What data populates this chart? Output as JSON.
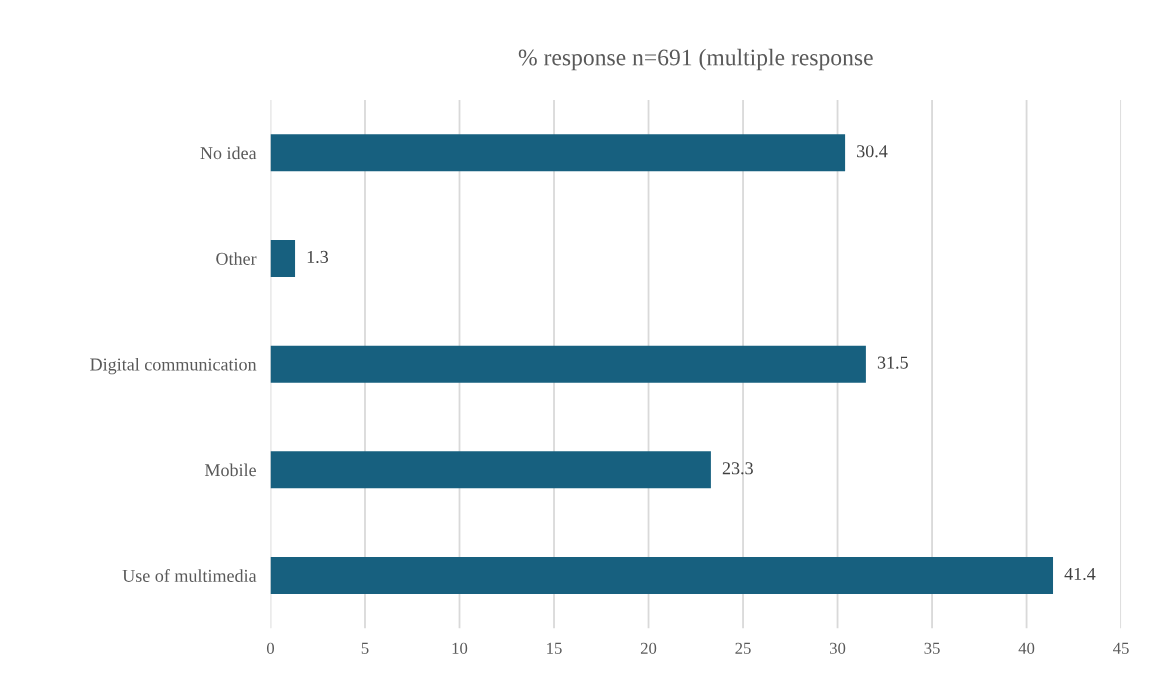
{
  "chart_data": {
    "type": "bar",
    "orientation": "horizontal",
    "title": "% response n=691 (multiple response",
    "categories": [
      "No idea",
      "Other",
      "Digital communication",
      "Mobile",
      "Use of multimedia"
    ],
    "values": [
      30.4,
      1.3,
      31.5,
      23.3,
      41.4
    ],
    "color": "#17607f",
    "xlim": [
      0,
      45
    ],
    "xticks": [
      0,
      5,
      10,
      15,
      20,
      25,
      30,
      35,
      40,
      45
    ],
    "grid": "x",
    "data_labels": true,
    "legend": false
  }
}
